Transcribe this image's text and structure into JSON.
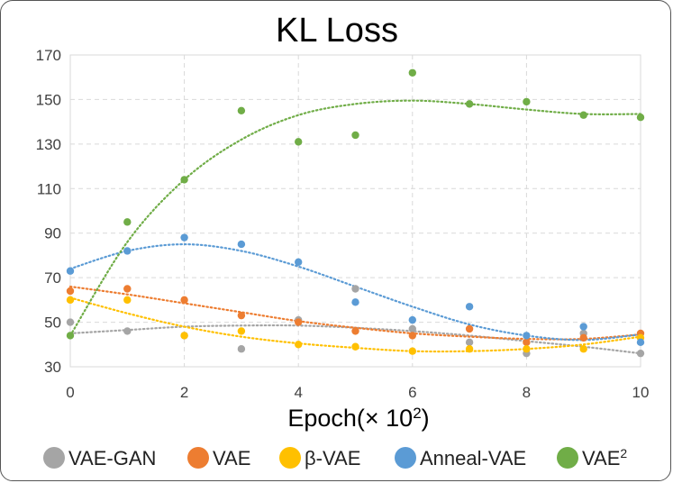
{
  "chart_data": {
    "type": "scatter",
    "title": "KL Loss",
    "xlabel_base": "Epoch(× 10",
    "xlabel_exp": "2",
    "xlabel_close": ")",
    "ylabel": "",
    "xlim": [
      0,
      10
    ],
    "ylim": [
      30,
      170
    ],
    "xticks": [
      0,
      2,
      4,
      6,
      8,
      10
    ],
    "yticks": [
      30,
      50,
      70,
      90,
      110,
      130,
      150,
      170
    ],
    "grid": true,
    "trendlines": "polynomial (dotted)",
    "legend_position": "bottom",
    "x": [
      0,
      1,
      2,
      3,
      4,
      5,
      6,
      7,
      8,
      9,
      10
    ],
    "series": [
      {
        "name": "VAE-GAN",
        "color": "#A5A5A5",
        "values": [
          50,
          46,
          44,
          38,
          51,
          65,
          47,
          41,
          36,
          45,
          36
        ],
        "trend": [
          45,
          46.5,
          48,
          48.5,
          48.5,
          47.5,
          46,
          44,
          41.5,
          39,
          36
        ]
      },
      {
        "name": "VAE",
        "color": "#ED7D31",
        "values": [
          64,
          65,
          60,
          53,
          50,
          46,
          44,
          47,
          41,
          43,
          45
        ],
        "trend": [
          66,
          62.5,
          58.5,
          54.5,
          50.5,
          47.5,
          45,
          43.5,
          42.5,
          42.5,
          44.5
        ]
      },
      {
        "name": "β-VAE",
        "color": "#FFC000",
        "values": [
          60,
          60,
          44,
          46,
          40,
          39,
          37,
          38,
          38,
          38,
          43
        ],
        "trend": [
          61,
          54,
          48,
          43.5,
          40.5,
          38.5,
          37,
          37,
          38,
          40,
          43.5
        ]
      },
      {
        "name": "Anneal-VAE",
        "color": "#5B9BD5",
        "values": [
          73,
          82,
          88,
          85,
          77,
          59,
          51,
          57,
          44,
          48,
          41
        ],
        "trend": [
          74,
          82,
          85,
          82,
          75,
          66,
          57,
          49,
          44,
          42,
          44.5
        ]
      },
      {
        "name": "VAE",
        "sup": "2",
        "color": "#70AD47",
        "values": [
          44,
          95,
          114,
          145,
          131,
          134,
          162,
          148,
          149,
          143,
          142
        ],
        "trend": [
          44,
          86,
          114,
          132,
          143,
          148,
          149.5,
          148,
          145.5,
          143.5,
          143.5
        ]
      }
    ]
  }
}
